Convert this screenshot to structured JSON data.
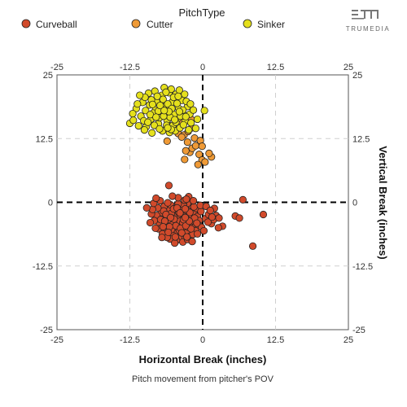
{
  "brand": {
    "name": "TRUMEDIA"
  },
  "legend": {
    "title": "PitchType",
    "items": [
      {
        "label": "Curveball",
        "color": "#d14a2b"
      },
      {
        "label": "Cutter",
        "color": "#ef9a36"
      },
      {
        "label": "Sinker",
        "color": "#e5e01c"
      }
    ]
  },
  "caption": "Pitch movement from pitcher's POV",
  "chart_data": {
    "type": "scatter",
    "xlabel": "Horizontal Break (inches)",
    "ylabel": "Vertical Break (inches)",
    "xlim": [
      -25,
      25
    ],
    "ylim": [
      -25,
      25
    ],
    "xticks": [
      -25,
      -12.5,
      0,
      12.5,
      25
    ],
    "yticks": [
      -25,
      -12.5,
      0,
      12.5,
      25
    ],
    "grid": true,
    "legend_position": "top",
    "series": [
      {
        "name": "Curveball",
        "color": "#d14a2b",
        "points": [
          [
            -4.6,
            -3.5
          ],
          [
            -3.8,
            -2.6
          ],
          [
            -4.2,
            -4.1
          ],
          [
            -3.4,
            -3.2
          ],
          [
            -2.9,
            -3.8
          ],
          [
            -5.1,
            -2.9
          ],
          [
            -4.5,
            -5.0
          ],
          [
            -3.6,
            -4.6
          ],
          [
            -2.6,
            -2.4
          ],
          [
            -5.6,
            -3.9
          ],
          [
            -4.9,
            -1.8
          ],
          [
            -3.1,
            -5.3
          ],
          [
            -6.0,
            -2.7
          ],
          [
            -2.3,
            -4.3
          ],
          [
            -4.1,
            -1.6
          ],
          [
            -5.3,
            -5.6
          ],
          [
            -3.3,
            -1.9
          ],
          [
            -2.0,
            -3.0
          ],
          [
            -6.4,
            -4.1
          ],
          [
            -4.4,
            -6.1
          ],
          [
            -3.7,
            -6.4
          ],
          [
            -5.8,
            -1.6
          ],
          [
            -2.7,
            -5.9
          ],
          [
            -1.7,
            -3.6
          ],
          [
            -6.8,
            -3.0
          ],
          [
            -4.8,
            -0.9
          ],
          [
            -3.5,
            -0.9
          ],
          [
            -5.0,
            -6.6
          ],
          [
            -2.4,
            -1.4
          ],
          [
            -1.5,
            -2.2
          ],
          [
            -7.1,
            -2.0
          ],
          [
            -6.2,
            -5.5
          ],
          [
            -1.3,
            -4.8
          ],
          [
            -4.0,
            -7.0
          ],
          [
            -3.0,
            -7.1
          ],
          [
            -5.5,
            -0.5
          ],
          [
            -2.1,
            -6.6
          ],
          [
            -7.4,
            -4.3
          ],
          [
            -1.1,
            -1.2
          ],
          [
            -6.6,
            -0.8
          ],
          [
            -4.3,
            -3.1
          ],
          [
            -3.9,
            -3.7
          ],
          [
            -5.2,
            -4.4
          ],
          [
            -2.8,
            -3.3
          ],
          [
            -4.7,
            -2.3
          ],
          [
            -3.2,
            -2.8
          ],
          [
            -5.9,
            -3.4
          ],
          [
            -2.5,
            -4.9
          ],
          [
            -4.0,
            -5.5
          ],
          [
            -3.4,
            -4.0
          ],
          [
            -1.9,
            -0.6
          ],
          [
            -2.6,
            -0.2
          ],
          [
            -3.3,
            -0.5
          ],
          [
            -4.2,
            -0.3
          ],
          [
            -1.5,
            -0.9
          ],
          [
            -0.9,
            -2.8
          ],
          [
            -0.6,
            -3.6
          ],
          [
            -0.8,
            -4.4
          ],
          [
            -1.2,
            -5.6
          ],
          [
            -1.7,
            -6.3
          ],
          [
            -7.9,
            -2.6
          ],
          [
            -8.3,
            -3.6
          ],
          [
            -7.6,
            -5.2
          ],
          [
            -6.9,
            -6.2
          ],
          [
            -5.6,
            -7.2
          ],
          [
            -4.5,
            -7.5
          ],
          [
            -3.4,
            -7.8
          ],
          [
            -2.6,
            -7.3
          ],
          [
            -8.8,
            -2.3
          ],
          [
            -6.1,
            -6.9
          ],
          [
            -2.0,
            -5.2
          ],
          [
            -6.7,
            -1.7
          ],
          [
            -7.2,
            -3.4
          ],
          [
            -5.4,
            -2.2
          ],
          [
            -4.6,
            -4.6
          ],
          [
            -3.8,
            -5.1
          ],
          [
            -2.2,
            -2.0
          ],
          [
            -3.0,
            -1.3
          ],
          [
            -4.9,
            -3.3
          ],
          [
            -5.7,
            -4.8
          ],
          [
            -6.3,
            -2.4
          ],
          [
            -1.4,
            -3.1
          ],
          [
            -0.3,
            -1.8
          ],
          [
            0.5,
            -3.2
          ],
          [
            -0.2,
            -4.9
          ],
          [
            -2.9,
            -4.6
          ],
          [
            -4.1,
            -2.0
          ],
          [
            -5.0,
            -1.3
          ],
          [
            -6.5,
            -3.7
          ],
          [
            -3.6,
            -6.0
          ],
          [
            -9.0,
            -4.0
          ],
          [
            -8.1,
            -5.1
          ],
          [
            -7.7,
            -1.1
          ],
          [
            -8.6,
            -1.4
          ],
          [
            -7.0,
            -6.9
          ],
          [
            -0.9,
            -6.2
          ],
          [
            0.2,
            -5.6
          ],
          [
            -1.8,
            -7.7
          ],
          [
            -4.8,
            -8.0
          ],
          [
            -6.0,
            -0.1
          ],
          [
            -3.1,
            0.4
          ],
          [
            -7.3,
            0.3
          ],
          [
            -4.2,
            0.9
          ],
          [
            -2.4,
            1.1
          ],
          [
            -5.2,
            1.2
          ],
          [
            -1.6,
            0.3
          ],
          [
            -8.4,
            -0.2
          ],
          [
            -0.4,
            -0.6
          ],
          [
            0.6,
            -0.8
          ],
          [
            1.0,
            -2.4
          ],
          [
            -5.5,
            -3.0
          ],
          [
            -4.4,
            -1.1
          ],
          [
            -3.9,
            -2.1
          ],
          [
            -2.7,
            -6.8
          ],
          [
            -5.9,
            -5.9
          ],
          [
            -6.8,
            -4.8
          ],
          [
            -1.0,
            -4.1
          ],
          [
            -2.3,
            -3.7
          ],
          [
            -4.7,
            -6.8
          ],
          [
            -3.3,
            -3.4
          ],
          [
            2.0,
            -1.2
          ],
          [
            2.3,
            -2.6
          ],
          [
            1.5,
            -4.2
          ],
          [
            1.9,
            -3.4
          ],
          [
            3.4,
            -4.7
          ],
          [
            2.8,
            -3.1
          ],
          [
            2.7,
            -5.0
          ],
          [
            1.3,
            -1.6
          ],
          [
            0.9,
            -3.9
          ],
          [
            1.6,
            -2.9
          ],
          [
            -5.8,
            3.3
          ],
          [
            -8.0,
            0.8
          ],
          [
            -9.6,
            -1.1
          ],
          [
            -2.8,
            0.6
          ],
          [
            5.6,
            -2.7
          ],
          [
            6.3,
            -3.1
          ],
          [
            6.9,
            0.5
          ],
          [
            8.6,
            -8.6
          ],
          [
            10.4,
            -2.4
          ],
          [
            -3.0,
            -3.0
          ]
        ]
      },
      {
        "name": "Cutter",
        "color": "#ef9a36",
        "points": [
          [
            -3.1,
            8.4
          ],
          [
            -2.2,
            9.8
          ],
          [
            -1.8,
            10.6
          ],
          [
            -0.6,
            9.4
          ],
          [
            -0.1,
            8.3
          ],
          [
            0.4,
            7.9
          ],
          [
            -2.6,
            11.8
          ],
          [
            -1.2,
            11.1
          ],
          [
            -0.8,
            7.4
          ],
          [
            1.5,
            8.9
          ],
          [
            1.1,
            9.6
          ],
          [
            -6.1,
            12.0
          ],
          [
            -4.9,
            14.1
          ],
          [
            -3.7,
            15.9
          ],
          [
            -4.2,
            13.5
          ],
          [
            -3.2,
            13.2
          ],
          [
            -2.5,
            13.9
          ],
          [
            -1.4,
            12.6
          ],
          [
            -0.4,
            12.1
          ],
          [
            -0.1,
            11.0
          ],
          [
            -1.9,
            14.6
          ],
          [
            -5.4,
            15.0
          ],
          [
            -2.0,
            16.3
          ],
          [
            -3.6,
            12.8
          ],
          [
            -2.9,
            10.1
          ]
        ]
      },
      {
        "name": "Sinker",
        "color": "#e5e01c",
        "points": [
          [
            -9.1,
            19.1
          ],
          [
            -8.1,
            18.1
          ],
          [
            -7.2,
            17.2
          ],
          [
            -6.4,
            18.9
          ],
          [
            -5.2,
            19.7
          ],
          [
            -4.1,
            18.4
          ],
          [
            -3.2,
            17.1
          ],
          [
            -7.6,
            15.4
          ],
          [
            -6.1,
            16.1
          ],
          [
            -5.1,
            15.1
          ],
          [
            -4.3,
            16.4
          ],
          [
            -8.9,
            16.3
          ],
          [
            -10.6,
            16.9
          ],
          [
            -9.7,
            14.8
          ],
          [
            -7.0,
            21.0
          ],
          [
            -5.8,
            21.5
          ],
          [
            -4.6,
            21.2
          ],
          [
            -3.6,
            20.0
          ],
          [
            -2.6,
            18.8
          ],
          [
            -2.2,
            17.3
          ],
          [
            -6.9,
            14.0
          ],
          [
            -5.7,
            13.7
          ],
          [
            -4.7,
            14.0
          ],
          [
            -11.0,
            15.0
          ],
          [
            -12.5,
            15.5
          ],
          [
            -9.3,
            21.4
          ],
          [
            -8.2,
            21.8
          ],
          [
            -6.6,
            22.5
          ],
          [
            -5.4,
            22.2
          ],
          [
            -4.0,
            22.0
          ],
          [
            -3.1,
            21.2
          ],
          [
            -10.3,
            19.6
          ],
          [
            -11.4,
            18.4
          ],
          [
            -8.7,
            13.6
          ],
          [
            -3.0,
            15.9
          ],
          [
            -2.0,
            15.6
          ],
          [
            -1.6,
            18.1
          ],
          [
            -0.9,
            16.3
          ],
          [
            -1.2,
            14.5
          ],
          [
            0.3,
            18.0
          ],
          [
            -7.9,
            19.7
          ],
          [
            -6.8,
            20.2
          ],
          [
            -5.9,
            18.0
          ],
          [
            -4.9,
            17.2
          ],
          [
            -7.4,
            16.6
          ],
          [
            -6.2,
            15.1
          ],
          [
            -8.5,
            17.5
          ],
          [
            -9.8,
            18.0
          ],
          [
            -4.4,
            19.4
          ],
          [
            -3.4,
            18.1
          ],
          [
            -5.6,
            16.7
          ],
          [
            -6.5,
            17.5
          ],
          [
            -7.8,
            20.8
          ],
          [
            -9.9,
            20.6
          ],
          [
            -11.9,
            16.1
          ],
          [
            -10.8,
            21.0
          ],
          [
            -2.8,
            19.8
          ],
          [
            -8.3,
            15.1
          ],
          [
            -5.0,
            20.6
          ],
          [
            -6.0,
            19.3
          ],
          [
            -7.1,
            18.3
          ],
          [
            -4.6,
            15.7
          ],
          [
            -3.8,
            16.9
          ],
          [
            -9.0,
            17.2
          ],
          [
            -10.1,
            16.0
          ],
          [
            -7.4,
            14.4
          ],
          [
            -5.4,
            14.3
          ],
          [
            -3.9,
            14.6
          ],
          [
            -2.4,
            14.2
          ],
          [
            -6.3,
            21.6
          ],
          [
            -4.2,
            20.8
          ],
          [
            -8.8,
            20.1
          ],
          [
            -11.2,
            19.3
          ],
          [
            -9.4,
            15.7
          ],
          [
            -6.7,
            16.9
          ],
          [
            -5.3,
            18.4
          ],
          [
            -4.0,
            17.8
          ],
          [
            -2.9,
            16.8
          ],
          [
            -7.6,
            17.9
          ],
          [
            -8.0,
            16.7
          ],
          [
            -10.0,
            14.2
          ],
          [
            -12.0,
            17.4
          ],
          [
            -6.0,
            14.6
          ],
          [
            -3.3,
            15.2
          ],
          [
            -2.1,
            19.3
          ],
          [
            -5.8,
            17.8
          ],
          [
            -7.3,
            19.0
          ],
          [
            -4.8,
            16.2
          ],
          [
            -8.6,
            19.2
          ],
          [
            -6.6,
            18.0
          ]
        ]
      }
    ]
  }
}
